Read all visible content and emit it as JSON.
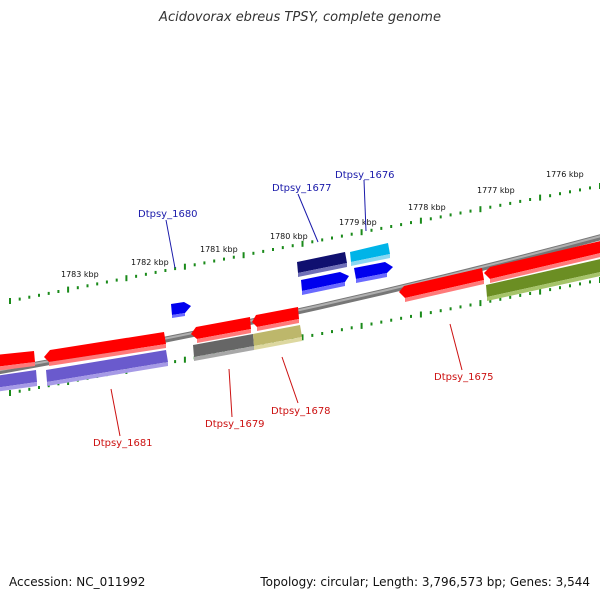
{
  "title": "Acidovorax ebreus TPSY, complete genome",
  "footer": {
    "accession": "Accession: NC_011992",
    "topology": "Topology: circular; Length: 3,796,573 bp; Genes: 3,544"
  },
  "colors": {
    "backbone": "#8c8c8c",
    "tick": "#1a8a1a",
    "label_top": "#1a1aaa",
    "label_bottom": "#cc1111",
    "red": "#ff0000",
    "blue": "#0000ee",
    "navy": "#101070",
    "cyan": "#00b4e8",
    "purple": "#6a5acd",
    "gray": "#666666",
    "khaki": "#bdb76b",
    "olive": "#6b8e23"
  },
  "scale_labels": [
    "1776 kbp",
    "1777 kbp",
    "1778 kbp",
    "1779 kbp",
    "1780 kbp",
    "1781 kbp",
    "1782 kbp",
    "1783 kbp"
  ],
  "gene_labels": {
    "top": [
      "Dtpsy_1680",
      "Dtpsy_1677",
      "Dtpsy_1676"
    ],
    "bottom": [
      "Dtpsy_1681",
      "Dtpsy_1679",
      "Dtpsy_1678",
      "Dtpsy_1675"
    ]
  }
}
